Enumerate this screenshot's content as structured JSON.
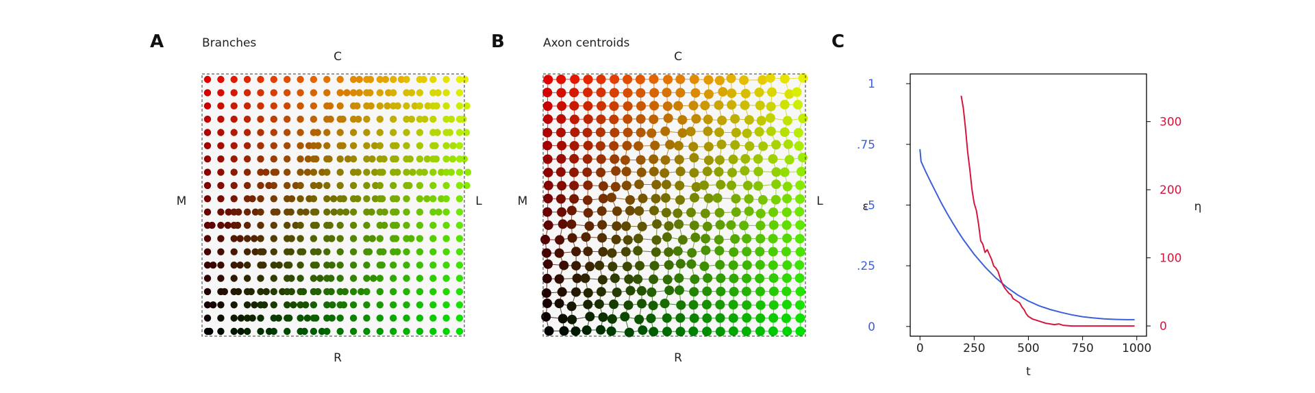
{
  "panels": [
    {
      "letter": "A",
      "title": "Branches",
      "labels": {
        "top": "C",
        "bottom": "R",
        "left": "M",
        "right": "L"
      }
    },
    {
      "letter": "B",
      "title": "Axon centroids",
      "labels": {
        "top": "C",
        "bottom": "R",
        "left": "M",
        "right": "L"
      }
    },
    {
      "letter": "C",
      "title": ""
    }
  ],
  "colors": {
    "corner_top_left": "#e00000",
    "corner_top_right": "#e6f000",
    "corner_bottom_left": "#000000",
    "corner_bottom_right": "#00e000",
    "epsilon_line": "#3a5fd9",
    "eta_line": "#d6143c"
  },
  "grid": {
    "rows": 20,
    "cols": 20
  },
  "chart_data": [
    {
      "type": "scatter",
      "description_text": "",
      "x": [],
      "y": []
    },
    {
      "type": "scatter",
      "x": [],
      "y": []
    },
    {
      "type": "line",
      "xlabel": "t",
      "ylabel_left": "ε",
      "ylabel_right": "η",
      "xlim": [
        -45,
        1045
      ],
      "xticks": [
        0,
        250,
        500,
        750,
        1000
      ],
      "xtick_labels": [
        "0",
        "250",
        "500",
        "750",
        "1000"
      ],
      "ylim_left": [
        -0.04,
        1.04
      ],
      "yticks_left": [
        0,
        0.25,
        0.5,
        0.75,
        1
      ],
      "ytick_labels_left": [
        "0",
        ".25",
        ".5",
        ".75",
        "1"
      ],
      "ylim_right": [
        -15,
        370
      ],
      "yticks_right": [
        0,
        100,
        200,
        300
      ],
      "ytick_labels_right": [
        "0",
        "100",
        "200",
        "300"
      ],
      "series": [
        {
          "axis": "left",
          "x": [
            0,
            5,
            25,
            50,
            75,
            100,
            125,
            150,
            175,
            200,
            250,
            300,
            350,
            400,
            450,
            500,
            550,
            600,
            650,
            700,
            750,
            800,
            850,
            900,
            950,
            990
          ],
          "y": [
            0.73,
            0.68,
            0.64,
            0.594,
            0.55,
            0.506,
            0.466,
            0.428,
            0.392,
            0.358,
            0.297,
            0.245,
            0.2,
            0.162,
            0.13,
            0.105,
            0.085,
            0.07,
            0.058,
            0.048,
            0.04,
            0.035,
            0.031,
            0.029,
            0.028,
            0.028
          ]
        },
        {
          "axis": "right",
          "x": [
            190,
            200,
            210,
            220,
            230,
            240,
            250,
            260,
            270,
            280,
            290,
            300,
            310,
            320,
            330,
            340,
            350,
            360,
            370,
            380,
            390,
            400,
            410,
            420,
            430,
            440,
            450,
            460,
            470,
            480,
            490,
            500,
            510,
            520,
            540,
            560,
            580,
            600,
            620,
            640,
            660,
            700,
            800,
            900,
            990
          ],
          "y": [
            338,
            320,
            290,
            255,
            230,
            200,
            180,
            170,
            150,
            125,
            120,
            108,
            112,
            105,
            98,
            88,
            85,
            80,
            70,
            62,
            56,
            52,
            48,
            46,
            40,
            38,
            36,
            34,
            28,
            24,
            18,
            14,
            12,
            10,
            8,
            6,
            4,
            3,
            2,
            3,
            1,
            0,
            0,
            0,
            0
          ]
        }
      ]
    }
  ]
}
